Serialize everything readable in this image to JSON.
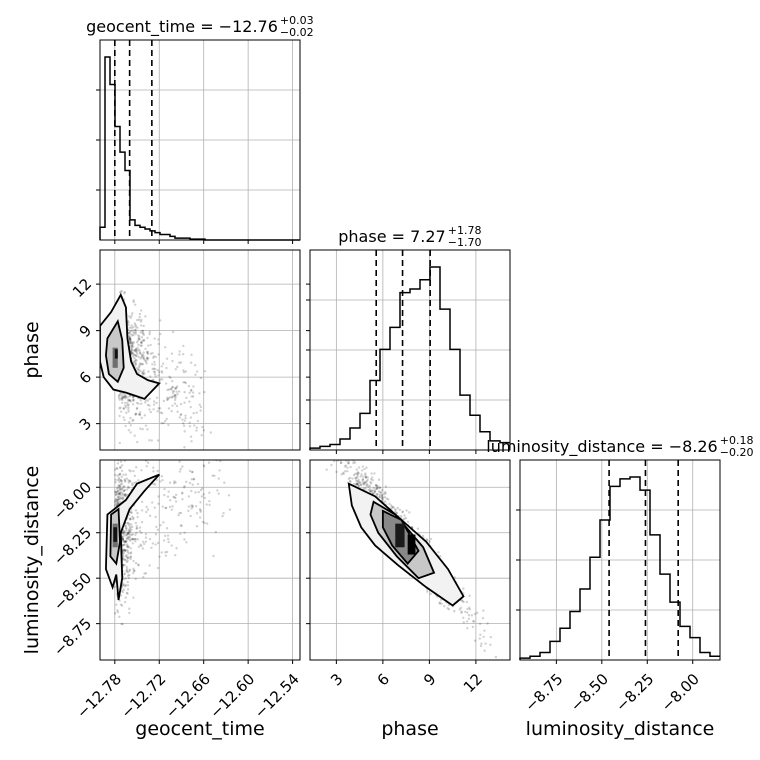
{
  "chart_data": {
    "type": "corner",
    "parameters": [
      {
        "key": "geocent_time",
        "xlabel": "geocent_time",
        "range": [
          -12.8,
          -12.53
        ],
        "ticks": [
          -12.78,
          -12.72,
          -12.66,
          -12.6,
          -12.54
        ],
        "tick_labels": [
          "−12.78",
          "−12.72",
          "−12.66",
          "−12.60",
          "−12.54"
        ],
        "title_main": "geocent_time = −12.76",
        "title_plus": "+0.03",
        "title_minus": "−0.02",
        "median": -12.76,
        "q_low": -12.78,
        "q_high": -12.73,
        "hist_edges_start": -12.8,
        "hist_bin_width": 0.00675,
        "hist_heights": [
          7,
          100,
          85,
          62,
          48,
          38,
          11,
          8,
          7,
          6,
          5,
          4,
          3,
          3,
          2,
          1,
          1,
          1,
          0.5,
          0.5,
          0.5,
          0,
          0,
          0,
          0,
          0,
          0,
          0,
          0,
          0,
          0,
          0,
          0,
          0,
          0,
          0,
          0,
          0,
          0,
          0
        ]
      },
      {
        "key": "phase",
        "xlabel": "phase",
        "ylabel": "phase",
        "range": [
          1.3,
          14.2
        ],
        "ticks": [
          3,
          6,
          9,
          12
        ],
        "tick_labels": [
          "3",
          "6",
          "9",
          "12"
        ],
        "title_main": "phase = 7.27",
        "title_plus": "+1.78",
        "title_minus": "−1.70",
        "median": 7.27,
        "q_low": 5.57,
        "q_high": 9.05,
        "hist_edges_start": 1.3,
        "hist_bin_width": 0.645,
        "hist_heights": [
          1,
          2,
          3,
          6,
          12,
          20,
          38,
          55,
          67,
          86,
          88,
          93,
          100,
          77,
          55,
          30,
          19,
          10,
          5,
          4
        ]
      },
      {
        "key": "luminosity_distance",
        "xlabel": "luminosity_distance",
        "ylabel": "luminosity_distance",
        "range": [
          -8.95,
          -7.85
        ],
        "ticks": [
          -8.75,
          -8.5,
          -8.25,
          -8.0
        ],
        "tick_labels": [
          "−8.75",
          "−8.50",
          "−8.25",
          "−8.00"
        ],
        "title_main": "luminosity_distance = −8.26",
        "title_plus": "+0.18",
        "title_minus": "−0.20",
        "median": -8.26,
        "q_low": -8.46,
        "q_high": -8.08,
        "hist_edges_start": -8.95,
        "hist_bin_width": 0.055,
        "hist_heights": [
          1,
          2,
          4,
          10,
          17,
          26,
          38,
          55,
          75,
          93,
          97,
          98,
          91,
          67,
          46,
          31,
          18,
          12,
          4,
          2
        ]
      }
    ],
    "grid": true,
    "quantile_lines": "dashed"
  }
}
